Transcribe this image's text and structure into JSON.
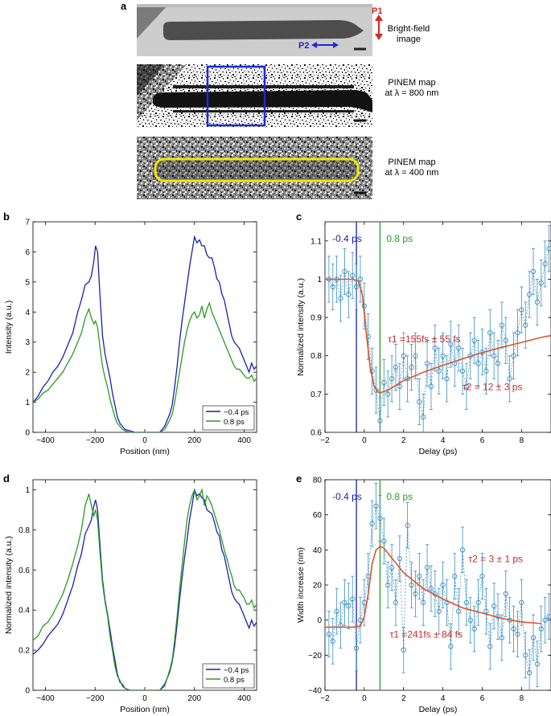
{
  "panel_a": {
    "letter": "a",
    "images": [
      {
        "caption": "Bright-field\nimage",
        "arrow_labels": [
          "P1",
          "P2"
        ]
      },
      {
        "caption": "PINEM map\nat λ = 800 nm"
      },
      {
        "caption": "PINEM map\nat λ = 400 nm"
      }
    ]
  },
  "colors": {
    "blue": "#1b1fae",
    "green": "#2a9a24",
    "fit": "#d9542a",
    "marker": "#3a8fc0",
    "red": "#cc2a2a",
    "yellow": "#f2e600"
  },
  "chart_data": [
    {
      "id": "b",
      "type": "line",
      "letter": "b",
      "xlabel": "Position (nm)",
      "ylabel": "Intensity (a.u.)",
      "xlim": [
        -450,
        450
      ],
      "ylim": [
        0,
        7
      ],
      "xticks": [
        -400,
        -200,
        0,
        200,
        400
      ],
      "yticks": [
        0,
        1,
        2,
        3,
        4,
        5,
        6,
        7
      ],
      "legend": {
        "position": "bottom-right",
        "entries": [
          "−0.4 ps",
          "0.8 ps"
        ]
      },
      "series": [
        {
          "name": "−0.4 ps",
          "color": "#1b1fae",
          "x": [
            -450,
            -430,
            -410,
            -390,
            -370,
            -350,
            -330,
            -310,
            -290,
            -270,
            -255,
            -240,
            -225,
            -215,
            -205,
            -198,
            -190,
            -180,
            -170,
            -160,
            -150,
            -140,
            -130,
            -120,
            -110,
            -100,
            -90,
            -80,
            -60,
            -40,
            -20,
            0,
            20,
            40,
            60,
            80,
            100,
            110,
            120,
            130,
            140,
            150,
            160,
            170,
            180,
            190,
            200,
            210,
            220,
            230,
            240,
            250,
            260,
            270,
            280,
            290,
            300,
            310,
            320,
            330,
            340,
            350,
            360,
            370,
            380,
            390,
            400,
            410,
            420,
            430,
            440,
            450
          ],
          "y": [
            1.0,
            1.2,
            1.5,
            1.7,
            2.0,
            2.2,
            2.5,
            2.9,
            3.3,
            4.0,
            4.4,
            4.9,
            5.0,
            5.2,
            5.7,
            6.2,
            6.0,
            4.5,
            3.2,
            2.6,
            2.2,
            1.8,
            1.3,
            0.9,
            0.5,
            0.3,
            0.2,
            0.1,
            0.05,
            0,
            0,
            0,
            0,
            0,
            0,
            0.2,
            0.6,
            0.9,
            1.5,
            2.2,
            3.0,
            3.7,
            4.3,
            4.9,
            5.5,
            6.0,
            6.5,
            6.3,
            6.4,
            6.2,
            6.2,
            5.9,
            5.8,
            5.8,
            5.5,
            5.1,
            5.0,
            4.6,
            4.4,
            4.0,
            3.6,
            3.2,
            3.0,
            2.9,
            2.8,
            2.6,
            2.4,
            2.2,
            2.0,
            2.3,
            2.1,
            2.2
          ]
        },
        {
          "name": "0.8 ps",
          "color": "#2a9a24",
          "x": [
            -450,
            -430,
            -410,
            -390,
            -370,
            -350,
            -330,
            -310,
            -290,
            -270,
            -255,
            -240,
            -225,
            -215,
            -205,
            -198,
            -190,
            -180,
            -170,
            -160,
            -150,
            -140,
            -130,
            -120,
            -110,
            -100,
            -90,
            -80,
            -60,
            -40,
            -20,
            0,
            20,
            40,
            60,
            80,
            100,
            110,
            120,
            130,
            140,
            150,
            160,
            170,
            180,
            190,
            200,
            210,
            220,
            230,
            240,
            250,
            260,
            270,
            280,
            290,
            300,
            310,
            320,
            330,
            340,
            350,
            360,
            370,
            380,
            390,
            400,
            410,
            420,
            430,
            440,
            450
          ],
          "y": [
            1.0,
            1.1,
            1.3,
            1.4,
            1.6,
            1.8,
            2.0,
            2.3,
            2.6,
            3.0,
            3.3,
            3.8,
            4.1,
            3.8,
            3.6,
            3.7,
            3.5,
            2.8,
            2.2,
            1.8,
            1.5,
            1.1,
            0.8,
            0.5,
            0.3,
            0.2,
            0.1,
            0.05,
            0,
            0,
            0,
            0,
            0,
            0,
            0,
            0.1,
            0.4,
            0.6,
            1.0,
            1.5,
            2.0,
            2.5,
            3.0,
            3.4,
            3.7,
            3.9,
            4.0,
            3.8,
            3.9,
            4.2,
            3.8,
            4.1,
            4.3,
            4.0,
            3.8,
            3.6,
            3.4,
            3.2,
            3.0,
            2.8,
            2.6,
            2.4,
            2.2,
            2.1,
            2.1,
            2.0,
            1.9,
            1.8,
            1.8,
            1.9,
            1.7,
            1.8
          ]
        }
      ]
    },
    {
      "id": "c",
      "type": "scatter",
      "letter": "c",
      "xlabel": "Delay (ps)",
      "ylabel": "Normalized intensity (a.u.)",
      "xlim": [
        -2,
        9.5
      ],
      "ylim": [
        0.6,
        1.15
      ],
      "xticks": [
        -2,
        0,
        2,
        4,
        6,
        8
      ],
      "yticks": [
        0.6,
        0.7,
        0.8,
        0.9,
        1,
        1.1
      ],
      "vlines": [
        {
          "x": -0.4,
          "label": "-0.4 ps",
          "color": "#1b1fae"
        },
        {
          "x": 0.8,
          "label": "0.8 ps",
          "color": "#2a9a24"
        }
      ],
      "annotations": [
        {
          "text": "τ1 =155fs ± 55 fs",
          "x": 1.2,
          "y": 0.835
        },
        {
          "text": "τ2 = 12 ± 3 ps",
          "x": 5.0,
          "y": 0.71
        }
      ],
      "points": {
        "x": [
          -1.8,
          -1.6,
          -1.4,
          -1.2,
          -1.0,
          -0.8,
          -0.6,
          -0.4,
          -0.2,
          0.0,
          0.2,
          0.4,
          0.6,
          0.8,
          1.0,
          1.2,
          1.4,
          1.6,
          1.8,
          2.0,
          2.2,
          2.4,
          2.6,
          2.8,
          3.0,
          3.2,
          3.4,
          3.6,
          3.8,
          4.0,
          4.2,
          4.4,
          4.6,
          4.8,
          5.0,
          5.2,
          5.4,
          5.6,
          5.8,
          6.0,
          6.2,
          6.4,
          6.6,
          6.8,
          7.0,
          7.2,
          7.4,
          7.6,
          7.8,
          8.0,
          8.2,
          8.4,
          8.6,
          8.8,
          9.0,
          9.2,
          9.4
        ],
        "y": [
          1.0,
          0.98,
          1.0,
          0.95,
          1.02,
          0.96,
          1.01,
          0.98,
          1.0,
          0.93,
          0.85,
          0.76,
          0.71,
          0.63,
          0.73,
          0.7,
          0.74,
          0.77,
          0.72,
          0.8,
          0.74,
          0.77,
          0.8,
          0.68,
          0.64,
          0.78,
          0.72,
          0.82,
          0.76,
          0.8,
          0.74,
          0.83,
          0.78,
          0.82,
          0.76,
          0.72,
          0.8,
          0.84,
          0.78,
          0.81,
          0.76,
          0.86,
          0.8,
          0.78,
          0.88,
          0.84,
          0.74,
          0.8,
          0.86,
          0.92,
          0.88,
          0.96,
          1.02,
          0.94,
          0.99,
          1.04,
          1.08
        ],
        "err": 0.06
      },
      "fit": {
        "x": [
          -2,
          -1.5,
          -1.0,
          -0.6,
          -0.3,
          -0.1,
          0.1,
          0.3,
          0.5,
          0.7,
          0.8,
          1.2,
          2,
          3,
          4,
          5,
          6,
          7,
          8,
          9,
          9.5
        ],
        "y": [
          1.0,
          1.0,
          1.0,
          1.0,
          0.995,
          0.96,
          0.86,
          0.77,
          0.72,
          0.705,
          0.703,
          0.71,
          0.735,
          0.757,
          0.775,
          0.792,
          0.808,
          0.822,
          0.835,
          0.848,
          0.853
        ]
      }
    },
    {
      "id": "d",
      "type": "line",
      "letter": "d",
      "xlabel": "Position (nm)",
      "ylabel": "Normalized intensity (a.u.)",
      "xlim": [
        -450,
        450
      ],
      "ylim": [
        0,
        1.05
      ],
      "xticks": [
        -400,
        -200,
        0,
        200,
        400
      ],
      "yticks": [
        0,
        0.2,
        0.4,
        0.6,
        0.8,
        1
      ],
      "legend": {
        "position": "bottom-right",
        "entries": [
          "−0.4 ps",
          "0.8 ps"
        ]
      },
      "series": [
        {
          "name": "−0.4 ps",
          "color": "#1b1fae",
          "x": [
            -450,
            -430,
            -410,
            -390,
            -370,
            -350,
            -330,
            -310,
            -290,
            -270,
            -255,
            -240,
            -225,
            -215,
            -205,
            -198,
            -190,
            -180,
            -170,
            -160,
            -150,
            -140,
            -130,
            -120,
            -110,
            -100,
            -90,
            -80,
            -60,
            -40,
            -20,
            0,
            20,
            40,
            60,
            80,
            100,
            110,
            120,
            130,
            140,
            150,
            160,
            170,
            180,
            190,
            200,
            210,
            220,
            230,
            240,
            250,
            260,
            270,
            280,
            290,
            300,
            310,
            320,
            330,
            340,
            350,
            360,
            370,
            380,
            390,
            400,
            410,
            420,
            430,
            440,
            450
          ],
          "y": [
            0.18,
            0.2,
            0.23,
            0.27,
            0.3,
            0.33,
            0.38,
            0.45,
            0.52,
            0.62,
            0.68,
            0.78,
            0.82,
            0.85,
            0.92,
            0.95,
            0.9,
            0.72,
            0.55,
            0.45,
            0.38,
            0.3,
            0.22,
            0.15,
            0.08,
            0.04,
            0.03,
            0.01,
            0,
            0,
            0,
            0,
            0,
            0,
            0,
            0.03,
            0.09,
            0.14,
            0.22,
            0.33,
            0.45,
            0.56,
            0.66,
            0.75,
            0.85,
            0.92,
            1.0,
            0.97,
            0.98,
            0.96,
            0.95,
            0.9,
            0.89,
            0.88,
            0.84,
            0.79,
            0.77,
            0.7,
            0.67,
            0.61,
            0.55,
            0.49,
            0.46,
            0.44,
            0.43,
            0.4,
            0.37,
            0.34,
            0.31,
            0.35,
            0.32,
            0.34
          ]
        },
        {
          "name": "0.8 ps",
          "color": "#2a9a24",
          "x": [
            -450,
            -430,
            -410,
            -390,
            -370,
            -350,
            -330,
            -310,
            -290,
            -270,
            -255,
            -240,
            -225,
            -215,
            -205,
            -198,
            -190,
            -180,
            -170,
            -160,
            -150,
            -140,
            -130,
            -120,
            -110,
            -100,
            -90,
            -80,
            -60,
            -40,
            -20,
            0,
            20,
            40,
            60,
            80,
            100,
            110,
            120,
            130,
            140,
            150,
            160,
            170,
            180,
            190,
            200,
            210,
            220,
            230,
            240,
            250,
            260,
            270,
            280,
            290,
            300,
            310,
            320,
            330,
            340,
            350,
            360,
            370,
            380,
            390,
            400,
            410,
            420,
            430,
            440,
            450
          ],
          "y": [
            0.25,
            0.27,
            0.32,
            0.34,
            0.38,
            0.43,
            0.48,
            0.55,
            0.63,
            0.72,
            0.8,
            0.92,
            0.98,
            0.92,
            0.87,
            0.9,
            0.85,
            0.68,
            0.53,
            0.44,
            0.37,
            0.27,
            0.2,
            0.12,
            0.07,
            0.05,
            0.02,
            0.01,
            0,
            0,
            0,
            0,
            0,
            0,
            0,
            0.02,
            0.1,
            0.15,
            0.25,
            0.37,
            0.5,
            0.62,
            0.74,
            0.85,
            0.92,
            0.97,
            1.0,
            0.95,
            0.97,
            1.0,
            0.92,
            0.97,
            0.95,
            0.92,
            0.88,
            0.84,
            0.8,
            0.75,
            0.7,
            0.66,
            0.61,
            0.57,
            0.52,
            0.5,
            0.5,
            0.48,
            0.46,
            0.43,
            0.43,
            0.45,
            0.41,
            0.43
          ]
        }
      ]
    },
    {
      "id": "e",
      "type": "scatter",
      "letter": "e",
      "xlabel": "Delay (ps)",
      "ylabel": "Width increase (nm)",
      "xlim": [
        -2,
        9.5
      ],
      "ylim": [
        -40,
        80
      ],
      "xticks": [
        -2,
        0,
        2,
        4,
        6,
        8
      ],
      "yticks": [
        -40,
        -20,
        0,
        20,
        40,
        60,
        80
      ],
      "vlines": [
        {
          "x": -0.4,
          "label": "-0.4 ps",
          "color": "#1b1fae"
        },
        {
          "x": 0.8,
          "label": "0.8 ps",
          "color": "#2a9a24"
        }
      ],
      "annotations": [
        {
          "text": "τ2 = 3 ± 1 ps",
          "x": 5.3,
          "y": 33
        },
        {
          "text": "τ1 =241fs ± 84 fs",
          "x": 1.3,
          "y": -10
        }
      ],
      "points": {
        "x": [
          -1.8,
          -1.6,
          -1.4,
          -1.2,
          -1.0,
          -0.8,
          -0.6,
          -0.4,
          -0.2,
          0.0,
          0.2,
          0.4,
          0.6,
          0.8,
          1.0,
          1.2,
          1.4,
          1.6,
          1.8,
          2.0,
          2.2,
          2.4,
          2.6,
          2.8,
          3.0,
          3.2,
          3.4,
          3.6,
          3.8,
          4.0,
          4.2,
          4.4,
          4.6,
          4.8,
          5.0,
          5.2,
          5.4,
          5.6,
          5.8,
          6.0,
          6.2,
          6.4,
          6.6,
          6.8,
          7.0,
          7.2,
          7.4,
          7.6,
          7.8,
          8.0,
          8.2,
          8.4,
          8.6,
          8.8,
          9.0,
          9.2,
          9.4
        ],
        "y": [
          -8,
          -12,
          5,
          -3,
          10,
          8,
          12,
          -16,
          0,
          10,
          25,
          55,
          65,
          58,
          45,
          20,
          30,
          10,
          35,
          -17,
          54,
          20,
          15,
          25,
          10,
          30,
          18,
          15,
          5,
          20,
          10,
          -15,
          25,
          5,
          40,
          10,
          0,
          -5,
          10,
          25,
          5,
          -15,
          8,
          2,
          -10,
          15,
          0,
          -5,
          -8,
          10,
          -20,
          -30,
          -10,
          -25,
          -5,
          0,
          2
        ],
        "err": 13
      },
      "fit": {
        "x": [
          -2,
          -1.5,
          -1.0,
          -0.5,
          -0.2,
          0.0,
          0.2,
          0.4,
          0.6,
          0.8,
          1.0,
          1.5,
          2,
          3,
          4,
          5,
          6,
          7,
          8,
          9
        ],
        "y": [
          -4,
          -4,
          -4,
          -4,
          -3.5,
          2,
          15,
          32,
          40,
          42,
          41,
          34,
          27,
          18,
          12,
          7,
          4,
          1,
          -1,
          -2
        ]
      }
    }
  ]
}
